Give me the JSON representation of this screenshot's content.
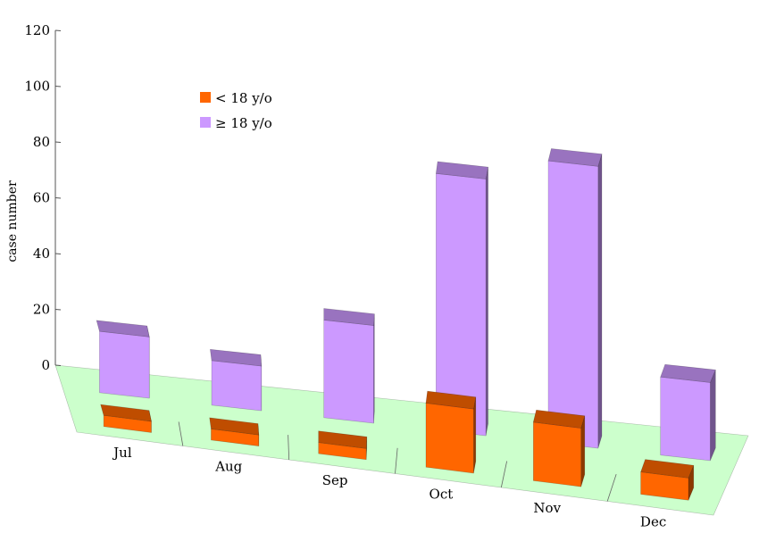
{
  "chart_data": {
    "type": "bar",
    "title": "",
    "xlabel": "",
    "ylabel": "case number",
    "ylim": [
      0,
      120
    ],
    "yticks": [
      0,
      20,
      40,
      60,
      80,
      100,
      120
    ],
    "categories": [
      "Jul",
      "Aug",
      "Sep",
      "Oct",
      "Nov",
      "Dec"
    ],
    "series": [
      {
        "name": "< 18 y/o",
        "values": [
          4,
          4,
          4,
          23,
          21,
          8
        ],
        "color": "#ff6600"
      },
      {
        "name": "≥ 18 y/o",
        "values": [
          22,
          16,
          35,
          92,
          101,
          28
        ],
        "color": "#cc99ff"
      }
    ],
    "legend": "top-left",
    "floor_color": "#ccffcc",
    "projection": "3d"
  }
}
